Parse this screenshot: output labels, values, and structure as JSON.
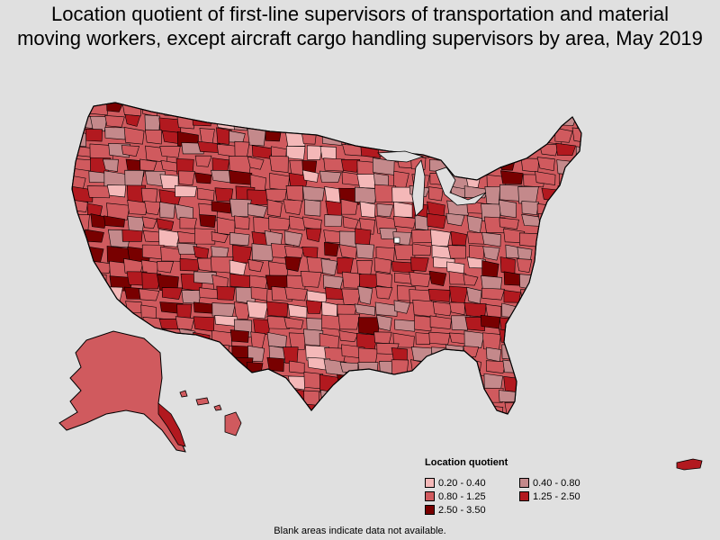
{
  "title": {
    "line1": "Location quotient of first-line supervisors of transportation and material",
    "line2": "moving workers, except aircraft cargo handling supervisors by area, May 2019"
  },
  "legend": {
    "title": "Location quotient",
    "items": [
      {
        "label": "0.20 - 0.40",
        "color": "#f4b8b8"
      },
      {
        "label": "0.40 - 0.80",
        "color": "#c4898b"
      },
      {
        "label": "0.80 - 1.25",
        "color": "#d05a5e"
      },
      {
        "label": "1.25 - 2.50",
        "color": "#b2191f"
      },
      {
        "label": "2.50 - 3.50",
        "color": "#780000"
      }
    ]
  },
  "footnote": "Blank areas indicate data not available.",
  "map": {
    "border_color": "#000000",
    "blank_color": "#ffffff"
  }
}
